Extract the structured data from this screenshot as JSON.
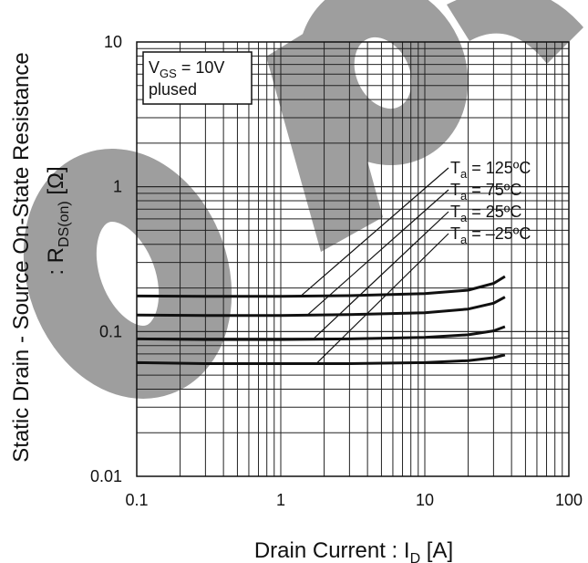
{
  "chart_data": {
    "type": "line",
    "x_scale": "log",
    "y_scale": "log",
    "xlim": [
      0.1,
      100
    ],
    "ylim": [
      0.01,
      10
    ],
    "grid": true,
    "xlabel": {
      "main": "Drain Current : I",
      "sub": "D",
      "unit": " [A]"
    },
    "ylabel": {
      "line1": "Static Drain - Source On-State Resistance",
      "line2_pre": ": R",
      "line2_sub": "DS(on)",
      "line2_post": " [Ω]"
    },
    "x_ticks": [
      "0.1",
      "1",
      "10",
      "100"
    ],
    "y_ticks": [
      "0.01",
      "0.1",
      "1",
      "10"
    ],
    "condition": {
      "symbol": "V",
      "sub": "GS",
      "value": " = 10V",
      "line2": "plused"
    },
    "series": [
      {
        "name": "125ºC",
        "label_pre": "T",
        "label_sub": "a",
        "label_value": " = 125ºC",
        "x": [
          0.1,
          0.3,
          1,
          3,
          10,
          20,
          30,
          36
        ],
        "y": [
          0.176,
          0.175,
          0.175,
          0.177,
          0.183,
          0.193,
          0.215,
          0.24
        ]
      },
      {
        "name": "75ºC",
        "label_pre": "T",
        "label_sub": "a",
        "label_value": " = 75ºC",
        "x": [
          0.1,
          0.3,
          1,
          3,
          10,
          20,
          30,
          36
        ],
        "y": [
          0.13,
          0.129,
          0.129,
          0.131,
          0.135,
          0.143,
          0.157,
          0.173
        ]
      },
      {
        "name": "25ºC",
        "label_pre": "T",
        "label_sub": "a",
        "label_value": " = 25ºC",
        "x": [
          0.1,
          0.3,
          1,
          3,
          10,
          20,
          30,
          36
        ],
        "y": [
          0.089,
          0.088,
          0.088,
          0.089,
          0.091,
          0.095,
          0.101,
          0.108
        ]
      },
      {
        "name": "-25ºC",
        "label_pre": "T",
        "label_sub": "a",
        "label_value": " = –25ºC",
        "x": [
          0.1,
          0.3,
          1,
          3,
          10,
          20,
          30,
          36
        ],
        "y": [
          0.061,
          0.06,
          0.06,
          0.06,
          0.061,
          0.063,
          0.066,
          0.069
        ]
      }
    ],
    "watermark": "ops",
    "watermark_color": "#9e9e9e"
  }
}
